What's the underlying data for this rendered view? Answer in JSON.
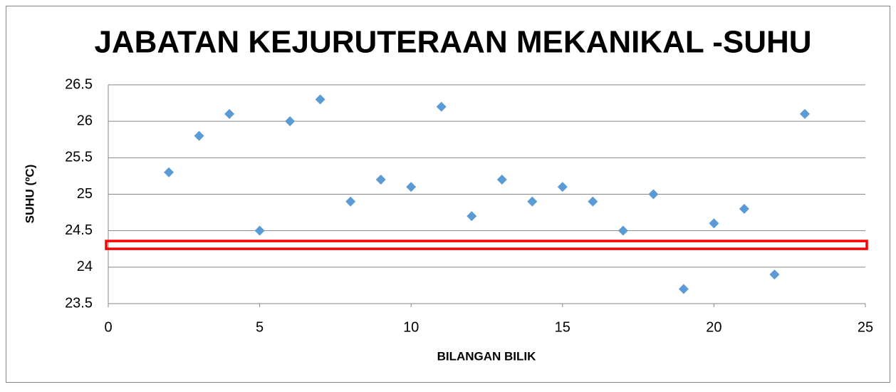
{
  "chart_data": {
    "type": "scatter",
    "title": "JABATAN KEJURUTERAAN MEKANIKAL -SUHU",
    "x_label": "BILANGAN BILIK",
    "y_label": "SUHU (ºC)",
    "series": [
      {
        "color": "#5b9bd5",
        "x": [
          2,
          3,
          4,
          5,
          6,
          7,
          8,
          9,
          10,
          11,
          12,
          13,
          14,
          15,
          16,
          17,
          18,
          19,
          20,
          21,
          22,
          23
        ],
        "values": [
          25.3,
          25.8,
          26.1,
          24.5,
          26.0,
          26.3,
          24.9,
          25.2,
          25.1,
          26.2,
          24.7,
          25.2,
          24.9,
          25.1,
          24.9,
          24.5,
          25.0,
          23.7,
          24.6,
          24.8,
          23.9,
          26.1
        ]
      }
    ],
    "xlim": [
      0,
      25
    ],
    "xticks": [
      0,
      5,
      10,
      15,
      20,
      25
    ],
    "ylim": [
      23.5,
      26.5
    ],
    "yticks": [
      23.5,
      24,
      24.5,
      25,
      25.5,
      26,
      26.5
    ],
    "grid": true,
    "highlight": {
      "y": 24.3,
      "color": "#ff0000"
    }
  }
}
